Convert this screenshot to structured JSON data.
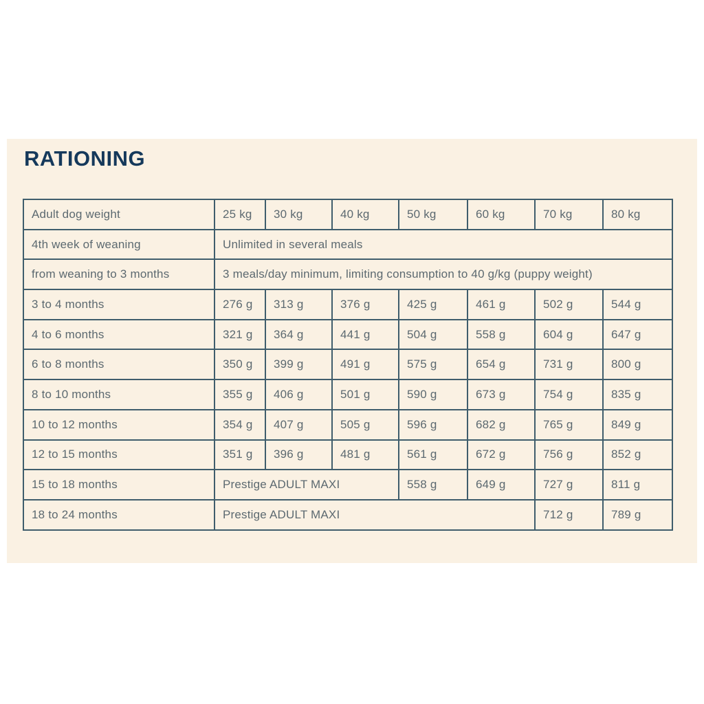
{
  "page": {
    "title": "RATIONING"
  },
  "colors": {
    "page_bg": "#FFFFFF",
    "panel_bg": "#FAF1E3",
    "table_border": "#3F5D6C",
    "cell_text": "#5C6970",
    "title_text": "#15395B"
  },
  "rationing_table": {
    "columns": [
      "Adult dog weight",
      "25 kg",
      "30 kg",
      "40 kg",
      "50 kg",
      "60 kg",
      "70 kg",
      "80 kg"
    ],
    "rows": [
      {
        "label": "4th week of weaning",
        "cells": [
          {
            "text": "Unlimited in several meals",
            "colspan": 7
          }
        ]
      },
      {
        "label": "from weaning to 3 months",
        "cells": [
          {
            "text": "3 meals/day minimum, limiting consumption to 40 g/kg (puppy weight)",
            "colspan": 7
          }
        ]
      },
      {
        "label": "3 to 4 months",
        "cells": [
          {
            "text": "276 g"
          },
          {
            "text": "313 g"
          },
          {
            "text": "376 g"
          },
          {
            "text": "425 g"
          },
          {
            "text": "461 g"
          },
          {
            "text": "502 g"
          },
          {
            "text": "544 g"
          }
        ]
      },
      {
        "label": "4 to 6 months",
        "cells": [
          {
            "text": "321 g"
          },
          {
            "text": "364 g"
          },
          {
            "text": "441 g"
          },
          {
            "text": "504 g"
          },
          {
            "text": "558 g"
          },
          {
            "text": "604 g"
          },
          {
            "text": "647 g"
          }
        ]
      },
      {
        "label": "6 to 8 months",
        "cells": [
          {
            "text": "350 g"
          },
          {
            "text": "399 g"
          },
          {
            "text": "491 g"
          },
          {
            "text": "575 g"
          },
          {
            "text": "654 g"
          },
          {
            "text": "731 g"
          },
          {
            "text": "800 g"
          }
        ]
      },
      {
        "label": "8 to 10 months",
        "cells": [
          {
            "text": "355 g"
          },
          {
            "text": "406 g"
          },
          {
            "text": "501 g"
          },
          {
            "text": "590 g"
          },
          {
            "text": "673 g"
          },
          {
            "text": "754 g"
          },
          {
            "text": "835 g"
          }
        ]
      },
      {
        "label": "10 to 12 months",
        "cells": [
          {
            "text": "354 g"
          },
          {
            "text": "407 g"
          },
          {
            "text": "505 g"
          },
          {
            "text": "596 g"
          },
          {
            "text": "682 g"
          },
          {
            "text": "765 g"
          },
          {
            "text": "849 g"
          }
        ]
      },
      {
        "label": "12 to 15 months",
        "cells": [
          {
            "text": "351 g"
          },
          {
            "text": "396 g"
          },
          {
            "text": "481 g"
          },
          {
            "text": "561 g"
          },
          {
            "text": "672 g"
          },
          {
            "text": "756 g"
          },
          {
            "text": "852 g"
          }
        ]
      },
      {
        "label": "15 to 18 months",
        "cells": [
          {
            "text": "Prestige ADULT MAXI",
            "colspan": 3
          },
          {
            "text": "558 g"
          },
          {
            "text": "649 g"
          },
          {
            "text": "727 g"
          },
          {
            "text": "811 g"
          }
        ]
      },
      {
        "label": "18 to 24 months",
        "cells": [
          {
            "text": "Prestige ADULT MAXI",
            "colspan": 5
          },
          {
            "text": "712 g"
          },
          {
            "text": "789 g"
          }
        ]
      }
    ]
  }
}
